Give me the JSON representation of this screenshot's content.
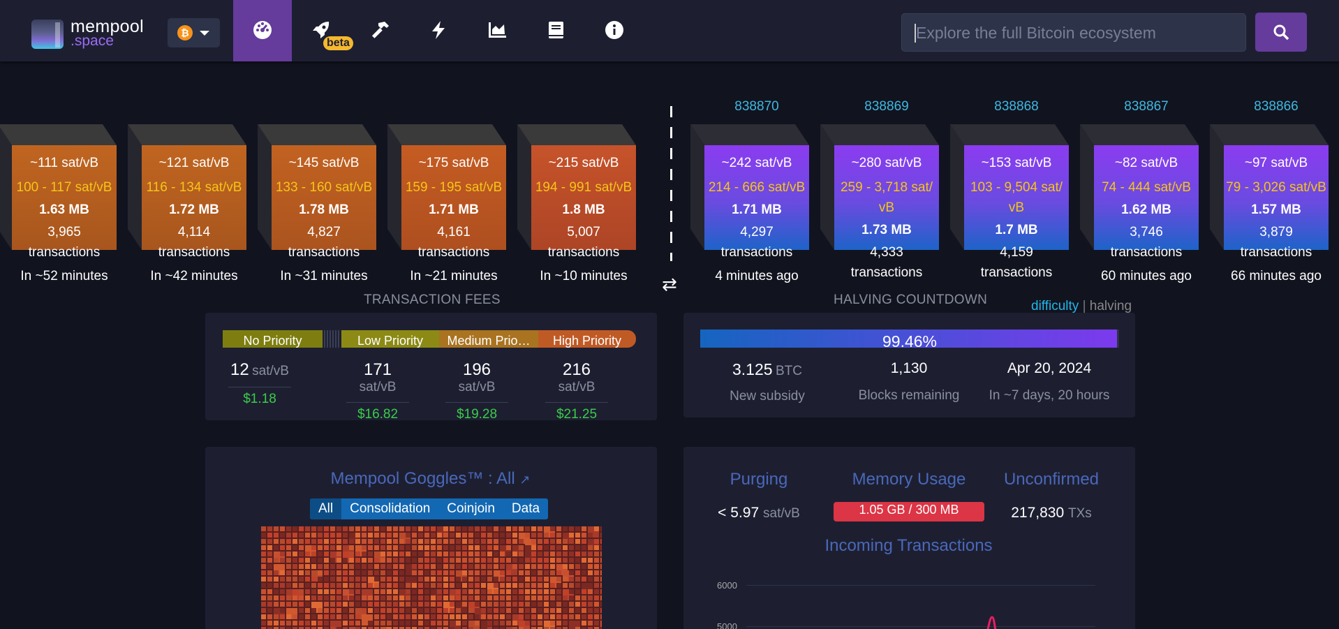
{
  "nav": {
    "logo_top": "mempool",
    "logo_bottom": ".space",
    "network_symbol": "₿",
    "beta_label": "beta",
    "icons": [
      "dashboard-icon",
      "rocket-icon",
      "hammer-icon",
      "lightning-icon",
      "chart-icon",
      "book-icon",
      "info-icon"
    ]
  },
  "search": {
    "placeholder": "Explore the full Bitcoin ecosystem"
  },
  "pending_blocks": [
    {
      "fee": "~111 sat/vB",
      "range": "100 - 117 sat/vB",
      "size": "1.63 MB",
      "tx_count": "3,965",
      "tx_label": "transactions",
      "eta": "In ~52 minutes",
      "color_top": "#c06520",
      "color_bottom": "#a8561e"
    },
    {
      "fee": "~121 sat/vB",
      "range": "116 - 134 sat/vB",
      "size": "1.72 MB",
      "tx_count": "4,114",
      "tx_label": "transactions",
      "eta": "In ~42 minutes",
      "color_top": "#c06520",
      "color_bottom": "#a8561e"
    },
    {
      "fee": "~145 sat/vB",
      "range": "133 - 160 sat/vB",
      "size": "1.78 MB",
      "tx_count": "4,827",
      "tx_label": "transactions",
      "eta": "In ~31 minutes",
      "color_top": "#c26221",
      "color_bottom": "#ab541f"
    },
    {
      "fee": "~175 sat/vB",
      "range": "159 - 195 sat/vB",
      "size": "1.71 MB",
      "tx_count": "4,161",
      "tx_label": "transactions",
      "eta": "In ~21 minutes",
      "color_top": "#c55c22",
      "color_bottom": "#ae4f20"
    },
    {
      "fee": "~215 sat/vB",
      "range": "194 - 991 sat/vB",
      "size": "1.8 MB",
      "tx_count": "5,007",
      "tx_label": "transactions",
      "eta": "In ~10 minutes",
      "color_top": "#c6532a",
      "color_bottom": "#ad4526"
    }
  ],
  "mined_blocks": [
    {
      "height": "838870",
      "fee": "~242 sat/vB",
      "range": "214 - 666 sat/vB",
      "size": "1.71 MB",
      "tx_count": "4,297",
      "tx_label": "transactions",
      "when": "4 minutes ago"
    },
    {
      "height": "838869",
      "fee": "~280 sat/vB",
      "range": "259 - 3,718 sat/ vB",
      "size": "1.73 MB",
      "tx_count": "4,333",
      "tx_label": "transactions",
      "when": ""
    },
    {
      "height": "838868",
      "fee": "~153 sat/vB",
      "range": "103 - 9,504 sat/ vB",
      "size": "1.7 MB",
      "tx_count": "4,159",
      "tx_label": "transactions",
      "when": ""
    },
    {
      "height": "838867",
      "fee": "~82 sat/vB",
      "range": "74 - 444 sat/vB",
      "size": "1.62 MB",
      "tx_count": "3,746",
      "tx_label": "transactions",
      "when": "60 minutes ago"
    },
    {
      "height": "838866",
      "fee": "~97 sat/vB",
      "range": "79 - 3,026 sat/vB",
      "size": "1.57 MB",
      "tx_count": "3,879",
      "tx_label": "transactions",
      "when": "66 minutes ago"
    }
  ],
  "sections": {
    "fees_title": "TRANSACTION FEES",
    "halving_title": "HALVING COUNTDOWN",
    "toggle_difficulty": "difficulty",
    "toggle_sep": "|",
    "toggle_halving": "halving"
  },
  "fees": {
    "labels": [
      "No Priority",
      "Low Priority",
      "Medium Prio…",
      "High Priority"
    ],
    "cols": [
      {
        "value": "12",
        "unit": "sat/vB",
        "usd": "$1.18"
      },
      {
        "value": "171",
        "unit": "sat/vB",
        "usd": "$16.82"
      },
      {
        "value": "196",
        "unit": "sat/vB",
        "usd": "$19.28"
      },
      {
        "value": "216",
        "unit": "sat/vB",
        "usd": "$21.25"
      }
    ]
  },
  "halving": {
    "progress": "99.46%",
    "progress_fraction": 0.9946,
    "subsidy_value": "3.125",
    "subsidy_unit": "BTC",
    "subsidy_label": "New subsidy",
    "blocks_value": "1,130",
    "blocks_label": "Blocks remaining",
    "date_value": "Apr 20, 2024",
    "date_label": "In ~7 days, 20 hours"
  },
  "goggles": {
    "title": "Mempool Goggles™ : All",
    "tabs": [
      "All",
      "Consolidation",
      "Coinjoin",
      "Data"
    ]
  },
  "memory": {
    "purging_label": "Purging",
    "purging_value": "< 5.97",
    "purging_unit": "sat/vB",
    "usage_label": "Memory Usage",
    "usage_value": "1.05 GB / 300 MB",
    "unconfirmed_label": "Unconfirmed",
    "unconfirmed_value": "217,830",
    "unconfirmed_unit": "TXs",
    "incoming_title": "Incoming Transactions",
    "axis_6000": "6000",
    "axis_5000": "5000"
  }
}
